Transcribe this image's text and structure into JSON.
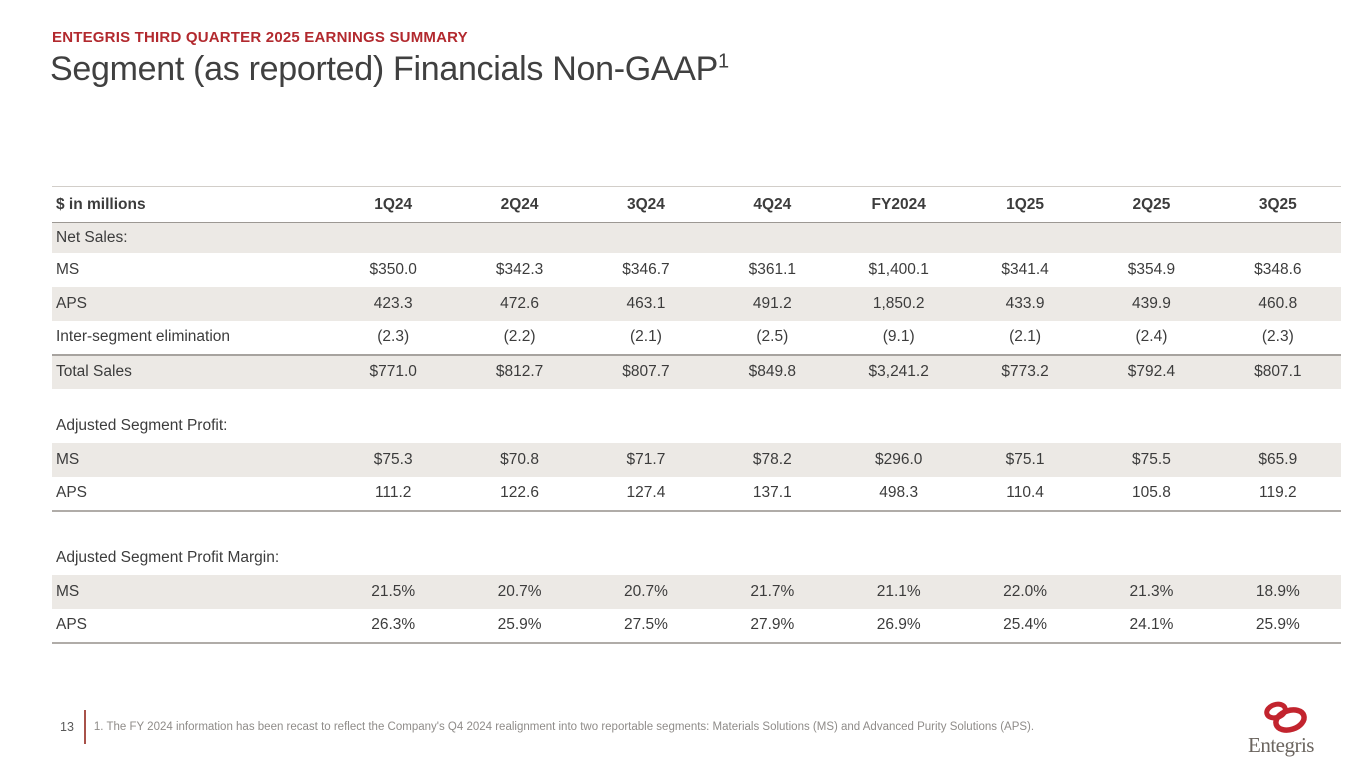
{
  "header": {
    "eyebrow": "ENTEGRIS THIRD QUARTER 2025 EARNINGS SUMMARY",
    "title": "Segment (as reported) Financials Non-GAAP",
    "title_superscript": "1"
  },
  "table": {
    "unit_label": "$ in millions",
    "columns": [
      "1Q24",
      "2Q24",
      "3Q24",
      "4Q24",
      "FY2024",
      "1Q25",
      "2Q25",
      "3Q25"
    ],
    "rows": [
      {
        "label": "Net Sales:",
        "type": "section",
        "shade": true
      },
      {
        "label": "MS",
        "type": "data",
        "shade": false,
        "values": [
          "$350.0",
          "$342.3",
          "$346.7",
          "$361.1",
          "$1,400.1",
          "$341.4",
          "$354.9",
          "$348.6"
        ]
      },
      {
        "label": "APS",
        "type": "data",
        "shade": true,
        "values": [
          "423.3",
          "472.6",
          "463.1",
          "491.2",
          "1,850.2",
          "433.9",
          "439.9",
          "460.8"
        ]
      },
      {
        "label": "Inter-segment elimination",
        "type": "data",
        "shade": false,
        "values": [
          "(2.3)",
          "(2.2)",
          "(2.1)",
          "(2.5)",
          "(9.1)",
          "(2.1)",
          "(2.4)",
          "(2.3)"
        ]
      },
      {
        "label": "Total Sales",
        "type": "total",
        "shade": true,
        "values": [
          "$771.0",
          "$812.7",
          "$807.7",
          "$849.8",
          "$3,241.2",
          "$773.2",
          "$792.4",
          "$807.1"
        ]
      },
      {
        "type": "spacer"
      },
      {
        "label": "Adjusted Segment Profit:",
        "type": "section",
        "shade": false
      },
      {
        "label": "MS",
        "type": "data",
        "shade": true,
        "values": [
          "$75.3",
          "$70.8",
          "$71.7",
          "$78.2",
          "$296.0",
          "$75.1",
          "$75.5",
          "$65.9"
        ]
      },
      {
        "label": "APS",
        "type": "data",
        "shade": false,
        "last": true,
        "values": [
          "111.2",
          "122.6",
          "127.4",
          "137.1",
          "498.3",
          "110.4",
          "105.8",
          "119.2"
        ]
      },
      {
        "type": "spacer"
      },
      {
        "label": "Adjusted Segment Profit Margin:",
        "type": "section",
        "shade": false
      },
      {
        "label": "MS",
        "type": "data",
        "shade": true,
        "values": [
          "21.5%",
          "20.7%",
          "20.7%",
          "21.7%",
          "21.1%",
          "22.0%",
          "21.3%",
          "18.9%"
        ]
      },
      {
        "label": "APS",
        "type": "data",
        "shade": false,
        "last": true,
        "values": [
          "26.3%",
          "25.9%",
          "27.5%",
          "27.9%",
          "26.9%",
          "25.4%",
          "24.1%",
          "25.9%"
        ]
      }
    ]
  },
  "footer": {
    "page_number": "13",
    "footnote": "1. The FY 2024 information has been recast to reflect the Company's Q4 2024 realignment into two reportable segments: Materials Solutions (MS) and Advanced Purity Solutions (APS).",
    "logo_text": "Entegris"
  },
  "icons": {
    "logo": "entegris-rings-icon"
  },
  "colors": {
    "accent_red": "#B2292E",
    "logo_red": "#C2242E",
    "title_gray": "#404040",
    "body_gray": "#3C3C3C",
    "row_shade": "#ECE9E5",
    "border_dark": "#9C9893",
    "footnote_gray": "#8F8C89"
  }
}
